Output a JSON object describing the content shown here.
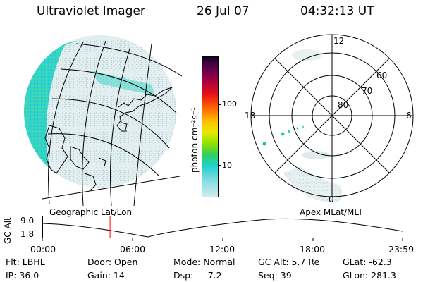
{
  "header": {
    "instrument": "Ultraviolet Imager",
    "date": "26 Jul 07",
    "time": "04:32:13 UT"
  },
  "colorbar": {
    "unit_label": "photon cm⁻²s⁻¹",
    "tick_labels": [
      "100",
      "10"
    ]
  },
  "polar": {
    "latitude_labels": [
      "80",
      "70",
      "60"
    ],
    "mlt_labels": [
      "12",
      "18",
      "6",
      "0"
    ]
  },
  "orbit_panel": {
    "left_title": "Geographic Lat/Lon",
    "right_title": "Apex MLat/MLT",
    "y_axis_label": "GC Alt",
    "y_ticks": [
      "9.0",
      "1.8"
    ],
    "time_ticks": [
      "00:00",
      "06:00",
      "12:00",
      "18:00",
      "23:59"
    ],
    "current_time_fraction": 0.188
  },
  "footer": {
    "flt": "Flt: LBHL",
    "ip": "IP: 36.0",
    "door": "Door: Open",
    "gain": "Gain: 14",
    "mode": "Mode: Normal",
    "dsp": "Dsp:    -7.2",
    "gc_alt": "GC Alt: 5.7 Re",
    "seq": "Seq: 39",
    "glat": "GLat: -62.3",
    "glon": "GLon: 281.3"
  },
  "colors": {
    "aurora_cyan": "#2ed6c8",
    "aurora_green": "#44e070",
    "faint_glow": "#cfe6e6",
    "time_marker": "#ff0000"
  }
}
